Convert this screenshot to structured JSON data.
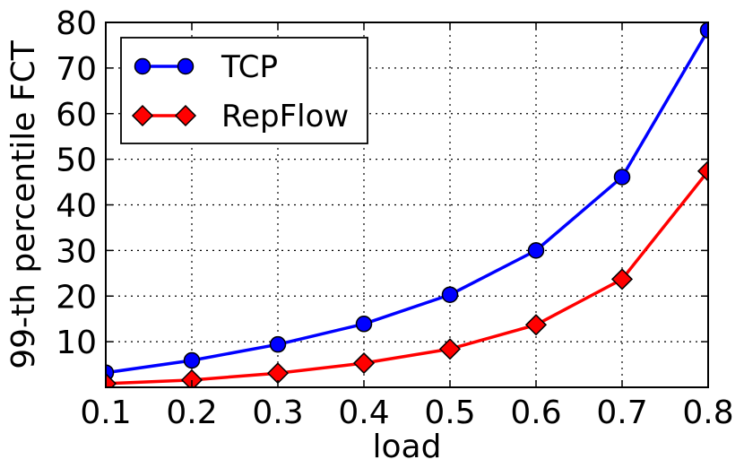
{
  "chart_data": {
    "type": "line",
    "title": "",
    "xlabel": "load",
    "ylabel": "99-th percentile FCT",
    "xlim": [
      0.1,
      0.8
    ],
    "ylim": [
      0,
      80
    ],
    "x_ticks": [
      "0.1",
      "0.2",
      "0.3",
      "0.4",
      "0.5",
      "0.6",
      "0.7",
      "0.8"
    ],
    "y_ticks": [
      "10",
      "20",
      "30",
      "40",
      "50",
      "60",
      "70",
      "80"
    ],
    "grid": true,
    "legend_position": "top-left",
    "x": [
      0.1,
      0.2,
      0.3,
      0.4,
      0.5,
      0.6,
      0.7,
      0.8
    ],
    "series": [
      {
        "name": "TCP",
        "values": [
          3.2,
          5.9,
          9.4,
          13.9,
          20.3,
          30.0,
          46.1,
          78.3
        ],
        "color": "#0000ff",
        "marker": "circle"
      },
      {
        "name": "RepFlow",
        "values": [
          0.8,
          1.6,
          3.1,
          5.3,
          8.4,
          13.7,
          23.7,
          47.4
        ],
        "color": "#ff0000",
        "marker": "diamond"
      }
    ]
  }
}
